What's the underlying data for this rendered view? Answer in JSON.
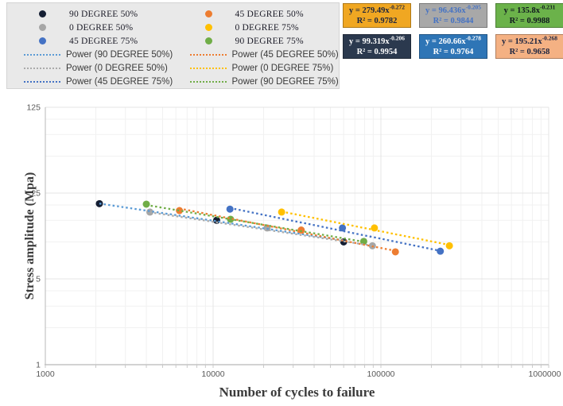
{
  "chart_data": {
    "type": "scatter",
    "title": "",
    "xlabel": "Number of cycles to failure",
    "ylabel": "Stress amplitude (Mpa)",
    "x_scale": "log10",
    "xlim": [
      1000,
      1000000
    ],
    "x_ticks": [
      1000,
      10000,
      100000,
      1000000
    ],
    "x_tick_labels": [
      "1000",
      "10000",
      "100000",
      "1000000"
    ],
    "y_scale": "log5",
    "ylim": [
      1,
      125
    ],
    "y_ticks": [
      125,
      25,
      5,
      1
    ],
    "y_tick_labels": [
      "125",
      "25",
      "5",
      "1"
    ],
    "y_minor_gridlines": [
      2,
      3,
      4,
      10,
      15,
      20,
      50,
      75,
      100
    ],
    "grid": true,
    "legend_position": "top-left",
    "series": [
      {
        "name": "90 DEGREE 50%",
        "marker_color": "#141e33",
        "trend_color": "#5b9bd5",
        "trend_label": "Power (90 DEGREE 50%)",
        "equation": "y = 99.319x^-0.206",
        "r_squared": "R² = 0.9954",
        "fit": {
          "a": 99.319,
          "b": -0.206
        },
        "points": [
          [
            2100,
            20.5
          ],
          [
            10500,
            15.0
          ],
          [
            60000,
            10.0
          ]
        ]
      },
      {
        "name": "45 DEGREE 50%",
        "marker_color": "#ed7d31",
        "trend_color": "#ed7d31",
        "trend_label": "Power (45 DEGREE 50%)",
        "equation": "y = 195.21x^-0.268",
        "r_squared": "R² = 0.9658",
        "fit": {
          "a": 195.21,
          "b": -0.268
        },
        "points": [
          [
            6300,
            18.0
          ],
          [
            33500,
            12.5
          ],
          [
            122000,
            8.3
          ]
        ]
      },
      {
        "name": "0 DEGREE 50%",
        "marker_color": "#a6a6a6",
        "trend_color": "#ababab",
        "trend_label": "Power (0 DEGREE 50%)",
        "equation": "y = 96.436x^-0.205",
        "r_squared": "R² = 0.9844",
        "fit": {
          "a": 96.436,
          "b": -0.205
        },
        "points": [
          [
            4200,
            17.5
          ],
          [
            21000,
            13.0
          ],
          [
            89000,
            9.3
          ]
        ]
      },
      {
        "name": "0 DEGREE 75%",
        "marker_color": "#ffc000",
        "trend_color": "#ffc000",
        "trend_label": "Power (0 DEGREE 75%)",
        "equation": "y = 279.49x^-0.272",
        "r_squared": "R² = 0.9782",
        "fit": {
          "a": 279.49,
          "b": -0.272
        },
        "points": [
          [
            25600,
            17.5
          ],
          [
            91500,
            13.0
          ],
          [
            256000,
            9.3
          ]
        ]
      },
      {
        "name": "45 DEGREE 75%",
        "marker_color": "#4472c4",
        "trend_color": "#4472c4",
        "trend_label": "Power (45 DEGREE 75%)",
        "equation": "y = 260.66x^-0.278",
        "r_squared": "R² = 0.9764",
        "fit": {
          "a": 260.66,
          "b": -0.278
        },
        "points": [
          [
            12600,
            18.5
          ],
          [
            59000,
            13.0
          ],
          [
            226000,
            8.4
          ]
        ]
      },
      {
        "name": "90 DEGREE 75%",
        "marker_color": "#70ad47",
        "trend_color": "#70ad47",
        "trend_label": "Power (90 DEGREE 75%)",
        "equation": "y = 135.8x^-0.231",
        "r_squared": "R² = 0.9988",
        "fit": {
          "a": 135.8,
          "b": -0.231
        },
        "points": [
          [
            4000,
            20.3
          ],
          [
            12700,
            15.3
          ],
          [
            79000,
            10.1
          ]
        ]
      }
    ]
  },
  "legend": {
    "columns": [
      {
        "items": [
          {
            "type": "marker",
            "label": "90 DEGREE 50%",
            "color": "#141e33"
          },
          {
            "type": "marker",
            "label": "0 DEGREE 50%",
            "color": "#a6a6a6"
          },
          {
            "type": "marker",
            "label": "45 DEGREE 75%",
            "color": "#4472c4"
          },
          {
            "type": "line",
            "label": "Power (90 DEGREE 50%)",
            "color": "#5b9bd5"
          },
          {
            "type": "line",
            "label": "Power (0 DEGREE 50%)",
            "color": "#ababab"
          },
          {
            "type": "line",
            "label": "Power (45 DEGREE 75%)",
            "color": "#4472c4"
          }
        ]
      },
      {
        "items": [
          {
            "type": "marker",
            "label": "45 DEGREE 50%",
            "color": "#ed7d31"
          },
          {
            "type": "marker",
            "label": "0 DEGREE 75%",
            "color": "#ffc000"
          },
          {
            "type": "marker",
            "label": "90 DEGREE 75%",
            "color": "#70ad47"
          },
          {
            "type": "line",
            "label": "Power (45 DEGREE 50%)",
            "color": "#ed7d31"
          },
          {
            "type": "line",
            "label": "Power (0 DEGREE 75%)",
            "color": "#ffc000"
          },
          {
            "type": "line",
            "label": "Power (90 DEGREE 75%)",
            "color": "#70ad47"
          }
        ]
      }
    ]
  },
  "equation_boxes": [
    {
      "bg": "#f0a722",
      "fg": "#1b2440",
      "coefficient": "y = 279.49x",
      "exponent": "-0.272",
      "r2": "R² = 0.9782"
    },
    {
      "bg": "#a8a8a8",
      "fg": "#4472c4",
      "coefficient": "y = 96.436x",
      "exponent": "-0.205",
      "r2": "R² = 0.9844"
    },
    {
      "bg": "#6bb24a",
      "fg": "#10181f",
      "coefficient": "y = 135.8x",
      "exponent": "-0.231",
      "r2": "R² = 0.9988"
    },
    {
      "bg": "#2b394e",
      "fg": "#ffffff",
      "coefficient": "y = 99.319x",
      "exponent": "-0.206",
      "r2": "R² = 0.9954"
    },
    {
      "bg": "#2e75b6",
      "fg": "#ffffff",
      "coefficient": "y = 260.66x",
      "exponent": "-0.278",
      "r2": "R² = 0.9764"
    },
    {
      "bg": "#f4b183",
      "fg": "#1b2440",
      "coefficient": "y = 195.21x",
      "exponent": "-0.268",
      "r2": "R² = 0.9658"
    }
  ],
  "colors": {
    "legend_bg": "#e9e9e9",
    "grid_major": "#e4e4e4",
    "grid_minor": "#f1f1f1",
    "axis_line": "#b8b8b8",
    "tick_label": "#595959"
  }
}
